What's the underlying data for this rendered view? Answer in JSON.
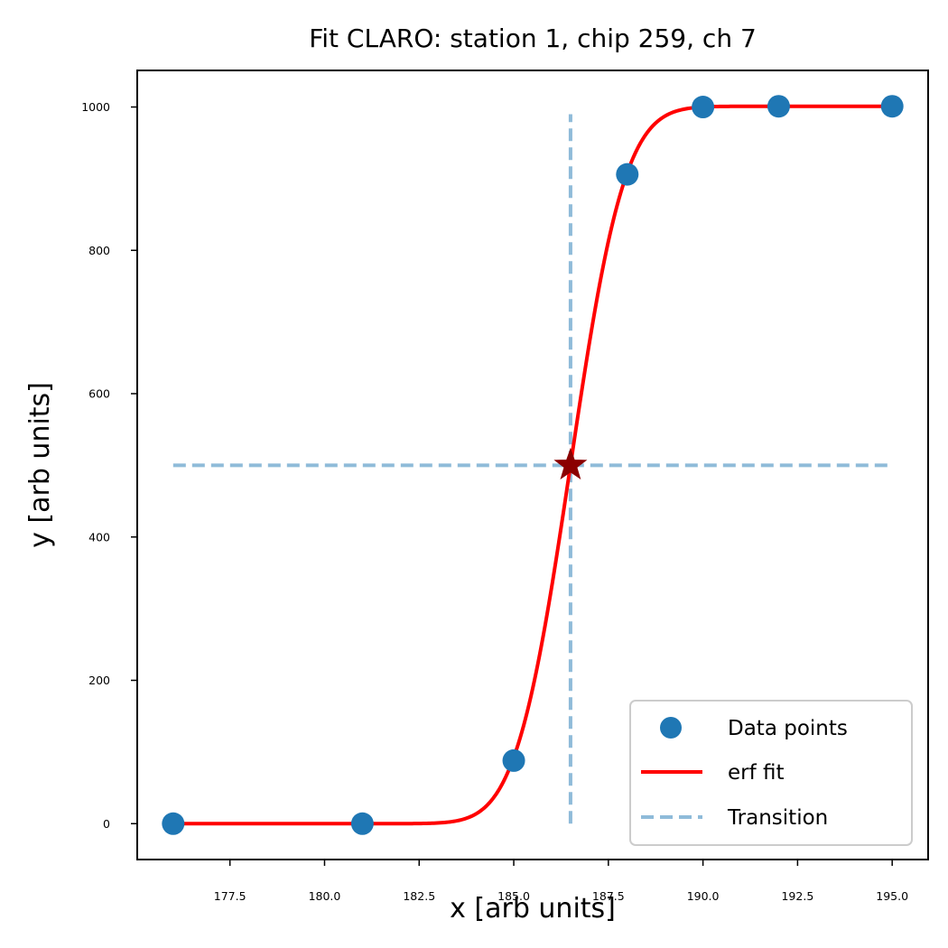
{
  "chart_data": {
    "type": "scatter",
    "title": "Fit CLARO: station 1, chip 259, ch 7",
    "xlabel": "x [arb units]",
    "ylabel": "y [arb units]",
    "xlim": [
      175.05,
      195.95
    ],
    "ylim": [
      -50.05,
      1051.05
    ],
    "xticks": [
      177.5,
      180.0,
      182.5,
      185.0,
      187.5,
      190.0,
      192.5,
      195.0
    ],
    "xtick_labels": [
      "177.5",
      "180.0",
      "182.5",
      "185.0",
      "187.5",
      "190.0",
      "192.5",
      "195.0"
    ],
    "yticks": [
      0,
      200,
      400,
      600,
      800,
      1000
    ],
    "ytick_labels": [
      "0",
      "200",
      "400",
      "600",
      "800",
      "1000"
    ],
    "grid": false,
    "legend_position": "lower-right",
    "series": [
      {
        "name": "Data points",
        "kind": "scatter",
        "color": "#1f77b4",
        "x": [
          176,
          181,
          185,
          188,
          190,
          192,
          195
        ],
        "y": [
          0,
          0,
          88,
          906,
          1000,
          1001,
          1001
        ]
      },
      {
        "name": "erf fit",
        "kind": "line",
        "color": "#ff0000",
        "function": "erf",
        "amplitude": 1001,
        "center": 186.5,
        "width": 1.6,
        "x_range": [
          176,
          195
        ]
      },
      {
        "name": "Transition",
        "kind": "dashed-lines",
        "color": "#1f77b4",
        "opacity": 0.5,
        "vertical": {
          "x": 186.5,
          "y_range": [
            0,
            990
          ]
        },
        "horizontal": {
          "y": 500,
          "x_range": [
            176,
            195
          ]
        }
      }
    ],
    "marker": {
      "kind": "star",
      "x": 186.5,
      "y": 500,
      "color": "#8b0000"
    }
  }
}
